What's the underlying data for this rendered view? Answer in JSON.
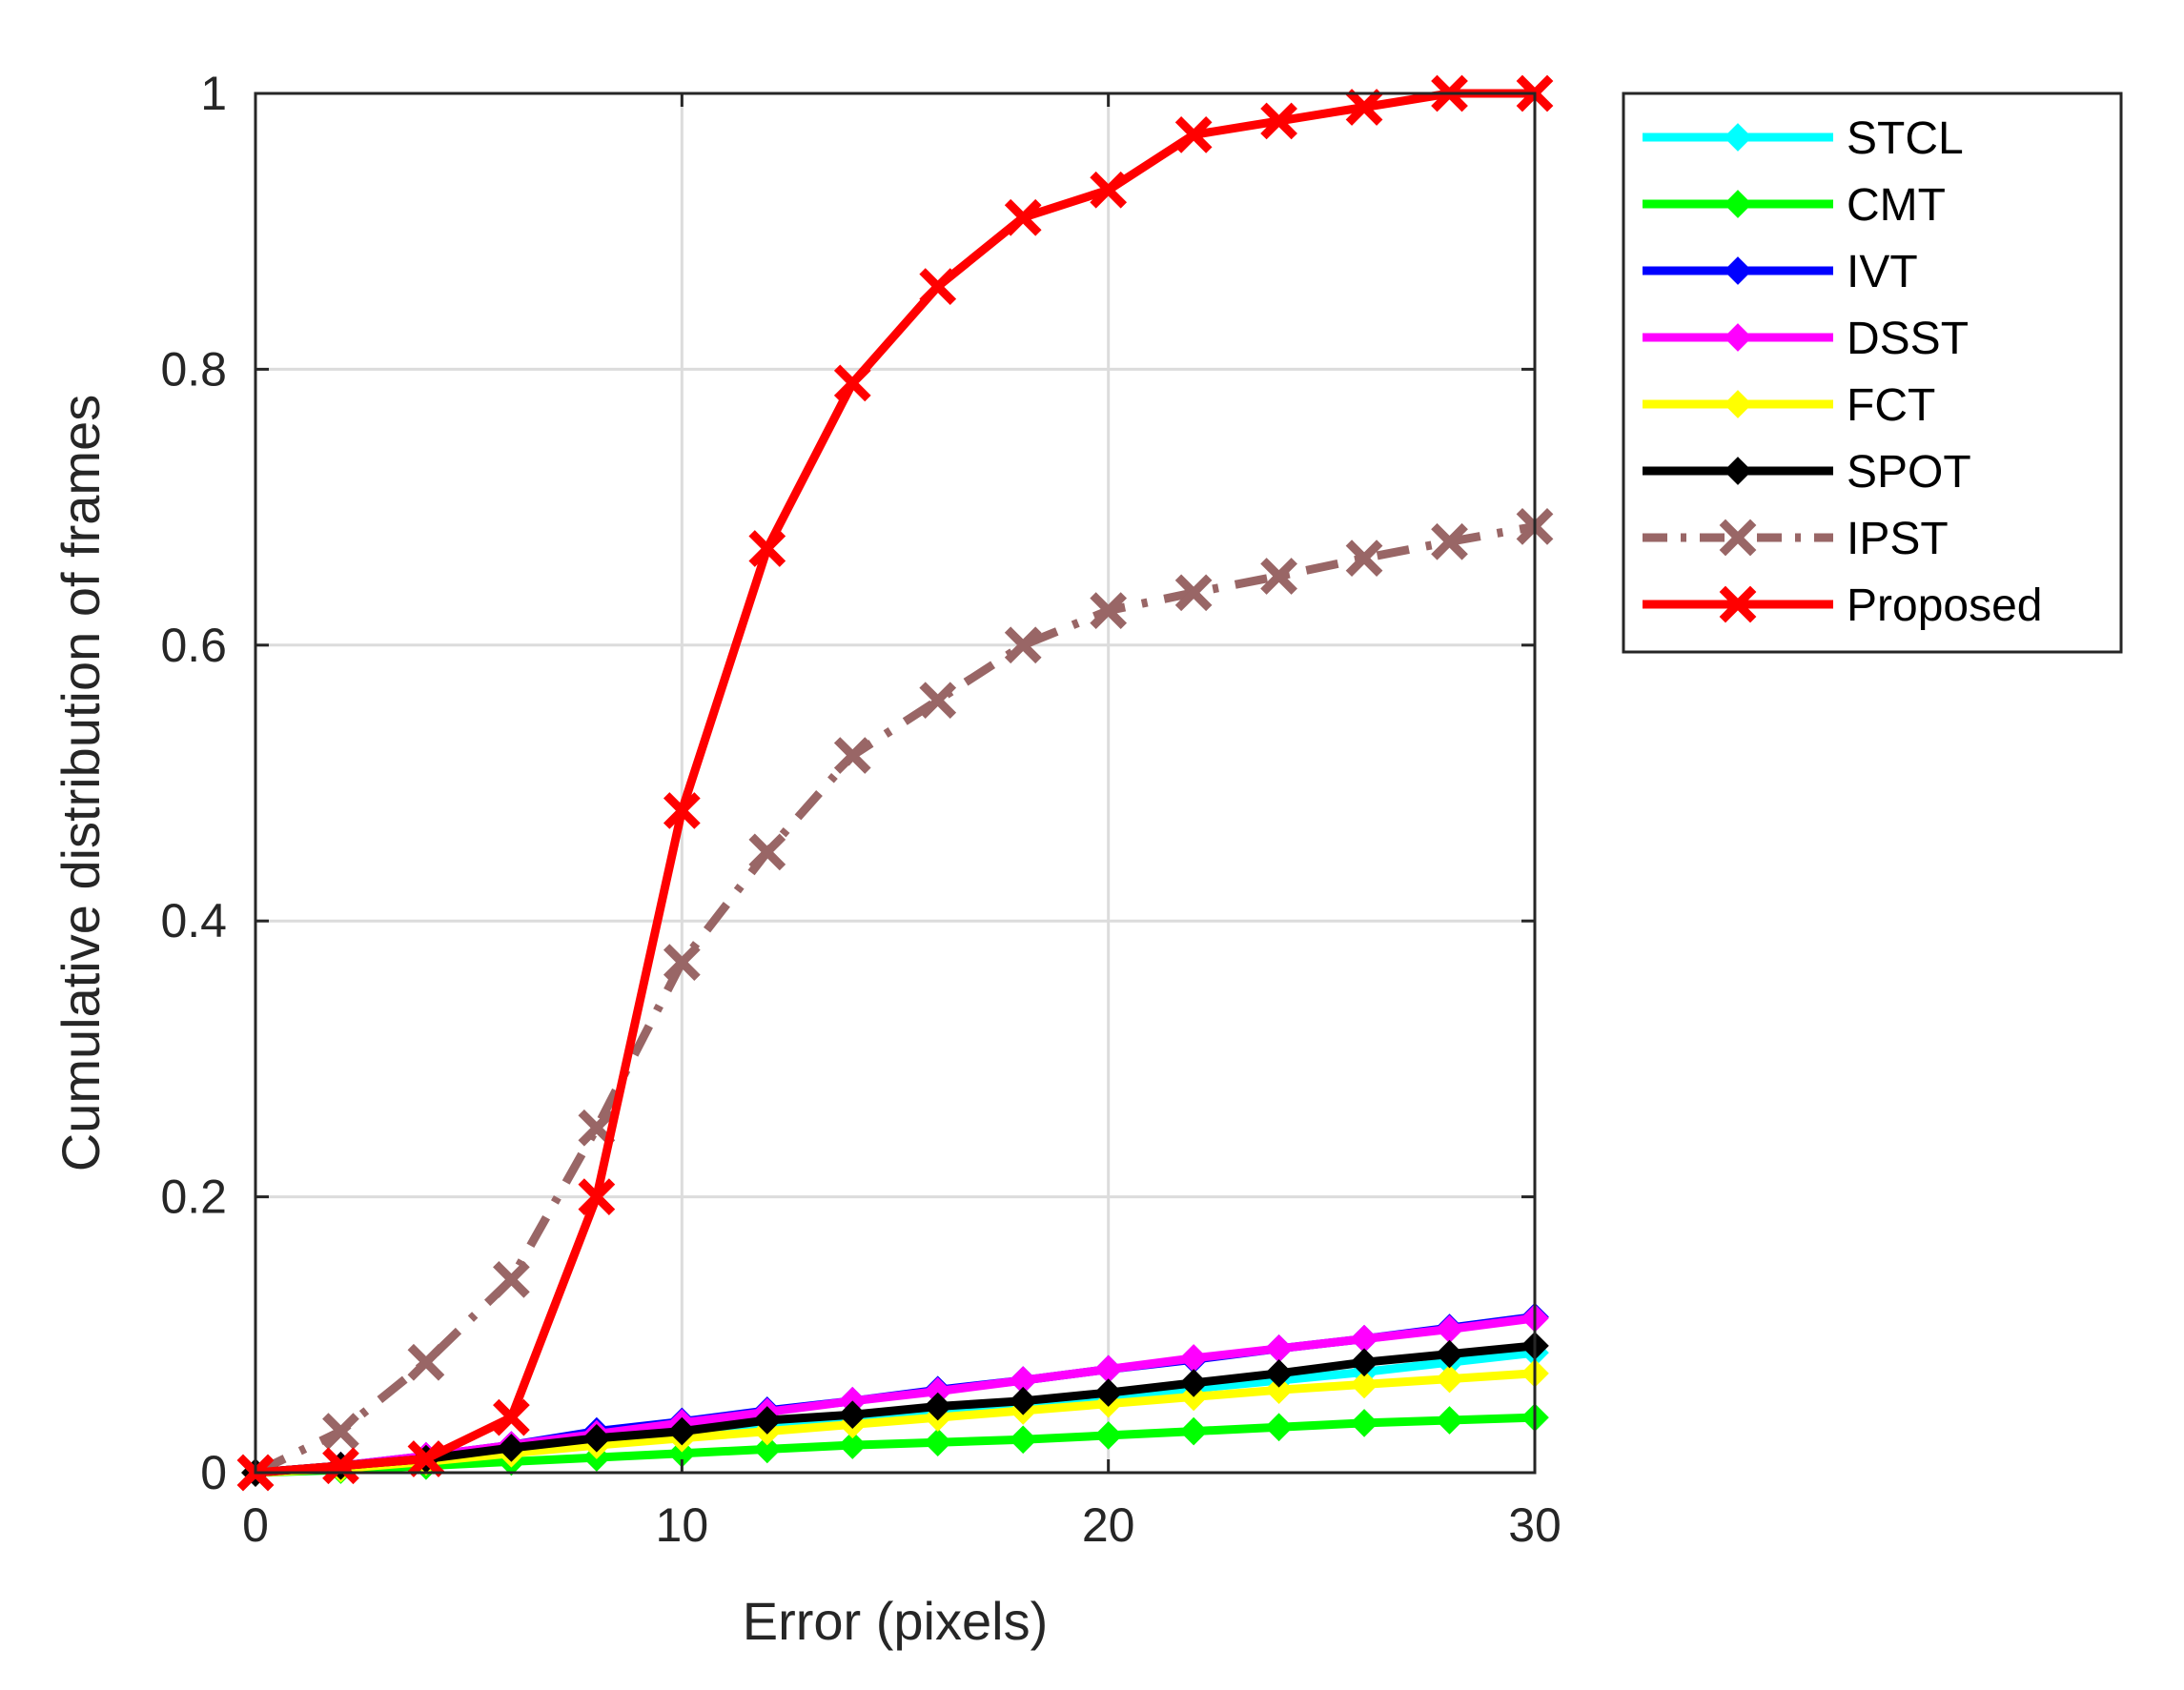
{
  "chart_data": {
    "type": "line",
    "title": "",
    "xlabel": "Error (pixels)",
    "ylabel": "Cumulative distribution of frames",
    "xlim": [
      0,
      30
    ],
    "ylim": [
      0,
      1
    ],
    "xticks": [
      0,
      10,
      20,
      30
    ],
    "yticks": [
      0,
      0.2,
      0.4,
      0.6,
      0.8,
      1
    ],
    "xtick_labels": [
      "0",
      "10",
      "20",
      "30"
    ],
    "ytick_labels": [
      "0",
      "0.2",
      "0.4",
      "0.6",
      "0.8",
      "1"
    ],
    "grid": true,
    "legend_position": "outside-right-top",
    "x": [
      0,
      2,
      4,
      6,
      8,
      10,
      12,
      14,
      16,
      18,
      20,
      22,
      24,
      26,
      28,
      30
    ],
    "series": [
      {
        "name": "STCL",
        "color": "#00ffff",
        "line_style": "solid",
        "marker": "diamond",
        "values": [
          0,
          0.003,
          0.008,
          0.015,
          0.022,
          0.028,
          0.034,
          0.04,
          0.045,
          0.05,
          0.055,
          0.061,
          0.067,
          0.073,
          0.08,
          0.087
        ]
      },
      {
        "name": "CMT",
        "color": "#00ff00",
        "line_style": "solid",
        "marker": "diamond",
        "values": [
          0,
          0.002,
          0.005,
          0.008,
          0.011,
          0.014,
          0.017,
          0.02,
          0.022,
          0.024,
          0.027,
          0.03,
          0.033,
          0.036,
          0.038,
          0.04
        ]
      },
      {
        "name": "IVT",
        "color": "#0000ff",
        "line_style": "solid",
        "marker": "diamond",
        "values": [
          0,
          0.005,
          0.012,
          0.02,
          0.03,
          0.037,
          0.045,
          0.052,
          0.06,
          0.067,
          0.075,
          0.082,
          0.09,
          0.097,
          0.105,
          0.113
        ]
      },
      {
        "name": "DSST",
        "color": "#ff00ff",
        "line_style": "solid",
        "marker": "diamond",
        "values": [
          0,
          0.005,
          0.012,
          0.02,
          0.028,
          0.036,
          0.044,
          0.052,
          0.059,
          0.067,
          0.075,
          0.083,
          0.09,
          0.097,
          0.104,
          0.112
        ]
      },
      {
        "name": "FCT",
        "color": "#ffff00",
        "line_style": "solid",
        "marker": "diamond",
        "values": [
          0,
          0.003,
          0.008,
          0.014,
          0.02,
          0.025,
          0.03,
          0.035,
          0.04,
          0.045,
          0.05,
          0.055,
          0.06,
          0.064,
          0.068,
          0.072
        ]
      },
      {
        "name": "SPOT",
        "color": "#000000",
        "line_style": "solid",
        "marker": "diamond",
        "values": [
          0,
          0.005,
          0.01,
          0.018,
          0.025,
          0.03,
          0.038,
          0.042,
          0.048,
          0.052,
          0.058,
          0.065,
          0.072,
          0.08,
          0.086,
          0.092
        ]
      },
      {
        "name": "IPST",
        "color": "#996666",
        "line_style": "dashdot",
        "marker": "x",
        "values": [
          0,
          0.03,
          0.08,
          0.14,
          0.25,
          0.37,
          0.45,
          0.52,
          0.56,
          0.6,
          0.625,
          0.638,
          0.65,
          0.663,
          0.675,
          0.686
        ]
      },
      {
        "name": "Proposed",
        "color": "#ff0000",
        "line_style": "solid",
        "marker": "x",
        "values": [
          0,
          0.005,
          0.01,
          0.04,
          0.2,
          0.48,
          0.67,
          0.79,
          0.86,
          0.91,
          0.93,
          0.97,
          0.98,
          0.99,
          1.0,
          1.0
        ]
      }
    ]
  }
}
